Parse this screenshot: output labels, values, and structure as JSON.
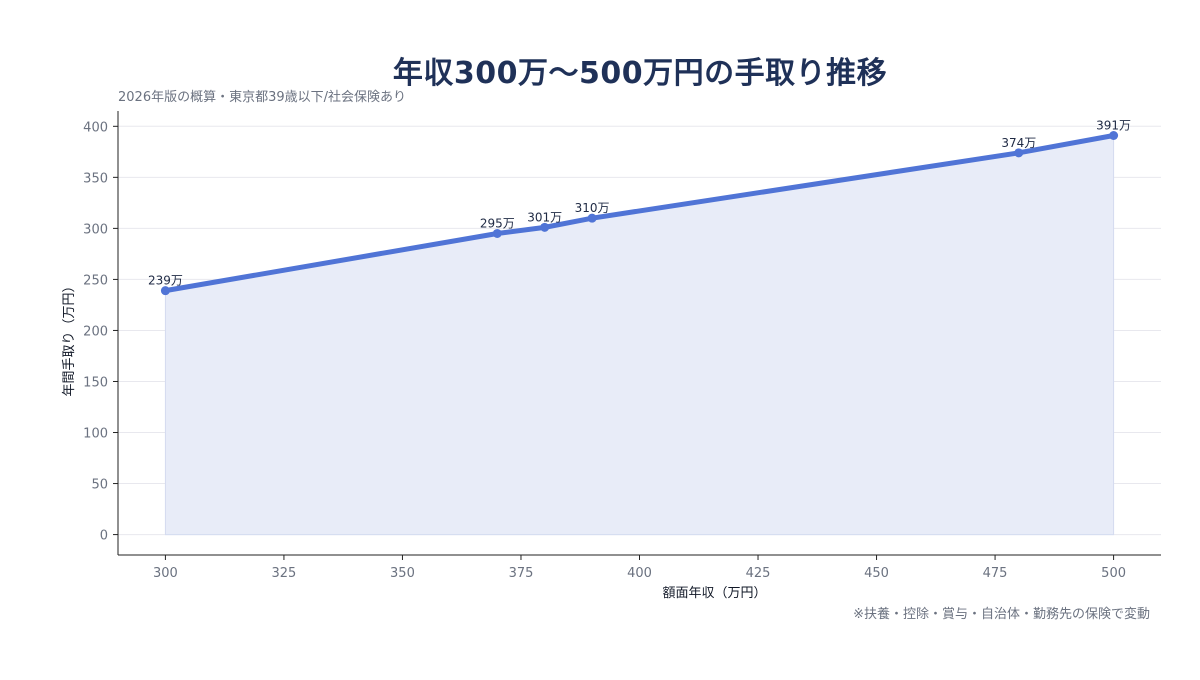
{
  "page": {
    "title": "年収300万〜500万円の手取り推移",
    "subtitle": "2026年版の概算・東京都39歳以下/社会保険あり",
    "footnote": "※扶養・控除・賞与・自治体・勤務先の保険で変動"
  },
  "colors": {
    "line": "#5074d6",
    "area": "#e8ecf8",
    "grid": "#e8e8ee",
    "axis": "#222222"
  },
  "chart_data": {
    "type": "area",
    "title": "年収300万〜500万円の手取り推移",
    "subtitle": "2026年版の概算・東京都39歳以下/社会保険あり",
    "xlabel": "額面年収（万円）",
    "ylabel": "年間手取り（万円）",
    "xlim": [
      290,
      510
    ],
    "ylim": [
      -20,
      415
    ],
    "xticks": [
      300,
      325,
      350,
      375,
      400,
      425,
      450,
      475,
      500
    ],
    "yticks": [
      0,
      50,
      100,
      150,
      200,
      250,
      300,
      350,
      400
    ],
    "grid": "horizontal",
    "x": [
      300,
      370,
      380,
      390,
      480,
      500
    ],
    "y": [
      239,
      295,
      301,
      310,
      374,
      391
    ],
    "data_labels": [
      "239万",
      "295万",
      "301万",
      "310万",
      "374万",
      "391万"
    ]
  }
}
